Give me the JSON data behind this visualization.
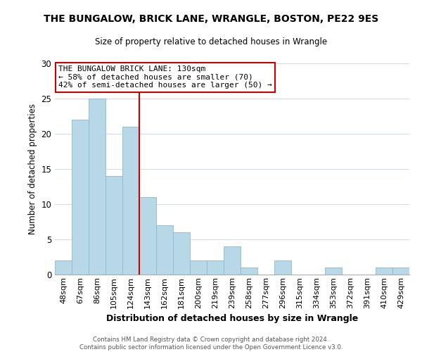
{
  "title": "THE BUNGALOW, BRICK LANE, WRANGLE, BOSTON, PE22 9ES",
  "subtitle": "Size of property relative to detached houses in Wrangle",
  "xlabel": "Distribution of detached houses by size in Wrangle",
  "ylabel": "Number of detached properties",
  "bar_labels": [
    "48sqm",
    "67sqm",
    "86sqm",
    "105sqm",
    "124sqm",
    "143sqm",
    "162sqm",
    "181sqm",
    "200sqm",
    "219sqm",
    "239sqm",
    "258sqm",
    "277sqm",
    "296sqm",
    "315sqm",
    "334sqm",
    "353sqm",
    "372sqm",
    "391sqm",
    "410sqm",
    "429sqm"
  ],
  "bar_values": [
    2,
    22,
    25,
    14,
    21,
    11,
    7,
    6,
    2,
    2,
    4,
    1,
    0,
    2,
    0,
    0,
    1,
    0,
    0,
    1,
    1
  ],
  "bar_color": "#b8d8e8",
  "bar_edgecolor": "#8ab8cc",
  "bar_width": 1.0,
  "vline_x": 4.5,
  "vline_color": "#cc0000",
  "ylim": [
    0,
    30
  ],
  "yticks": [
    0,
    5,
    10,
    15,
    20,
    25,
    30
  ],
  "annotation_title": "THE BUNGALOW BRICK LANE: 130sqm",
  "annotation_line1": "← 58% of detached houses are smaller (70)",
  "annotation_line2": "42% of semi-detached houses are larger (50) →",
  "annotation_box_color": "#ffffff",
  "annotation_box_edgecolor": "#cc0000",
  "footer_line1": "Contains HM Land Registry data © Crown copyright and database right 2024.",
  "footer_line2": "Contains public sector information licensed under the Open Government Licence v3.0.",
  "background_color": "#ffffff",
  "grid_color": "#d0dae8"
}
